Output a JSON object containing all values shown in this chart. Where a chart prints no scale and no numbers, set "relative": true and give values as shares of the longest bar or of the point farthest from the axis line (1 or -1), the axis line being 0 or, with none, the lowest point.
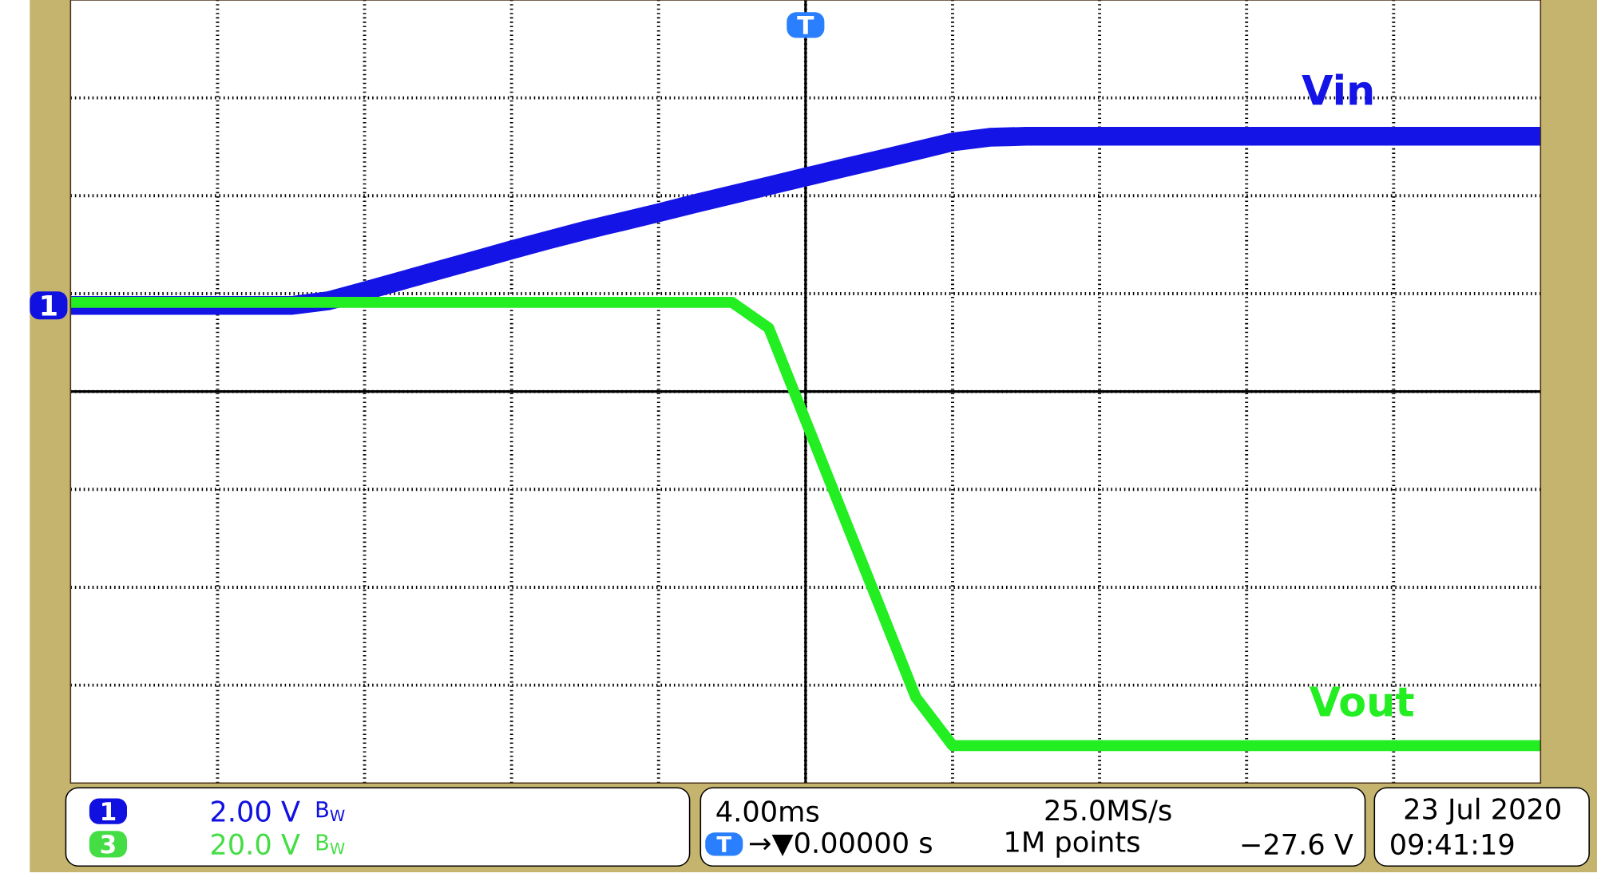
{
  "chart_data": {
    "type": "line",
    "relative": true,
    "grid": true,
    "categories": [
      null,
      null,
      null,
      null,
      null,
      null,
      null,
      null,
      null,
      null,
      null,
      null,
      null,
      null,
      null,
      null,
      null,
      null,
      null,
      null,
      null,
      null,
      null,
      null,
      null,
      null,
      null,
      null,
      null,
      null,
      null,
      null,
      null,
      null,
      null,
      null,
      null,
      null,
      null,
      null,
      null
    ],
    "series": [
      {
        "name": "Vin",
        "color": "#1414e6",
        "values": [
          0.243,
          0.243,
          0.243,
          0.243,
          0.243,
          0.243,
          0.243,
          0.256,
          0.284,
          0.313,
          0.342,
          0.371,
          0.4,
          0.428,
          0.455,
          0.48,
          0.505,
          0.531,
          0.556,
          0.581,
          0.606,
          0.631,
          0.655,
          0.68,
          0.705,
          0.718,
          0.721,
          0.721,
          0.721,
          0.721,
          0.721,
          0.721,
          0.721,
          0.721,
          0.721,
          0.721,
          0.721,
          0.721,
          0.721,
          0.721,
          0.721
        ]
      },
      {
        "name": "Vout",
        "color": "#22ee22",
        "values": [
          0.252,
          0.252,
          0.252,
          0.252,
          0.252,
          0.252,
          0.252,
          0.252,
          0.252,
          0.252,
          0.252,
          0.252,
          0.252,
          0.252,
          0.252,
          0.252,
          0.252,
          0.252,
          0.252,
          0.179,
          -0.082,
          -0.343,
          -0.603,
          -0.864,
          -1,
          -1,
          -1,
          -1,
          -1,
          -1,
          -1,
          -1,
          -1,
          -1,
          -1,
          -1,
          -1,
          -1,
          -1,
          -1,
          -1
        ]
      }
    ],
    "annotations": [
      "1",
      "T",
      "1",
      "2.00 V",
      "B$_{W}$",
      "3",
      "20.0 V",
      "B$_{W}$",
      "4.00ms",
      "T",
      "→▼0.00000 s",
      "25.0MS/s",
      "1M points",
      "−27.6 V",
      "23 Jul  2020",
      "09:41:19"
    ]
  }
}
